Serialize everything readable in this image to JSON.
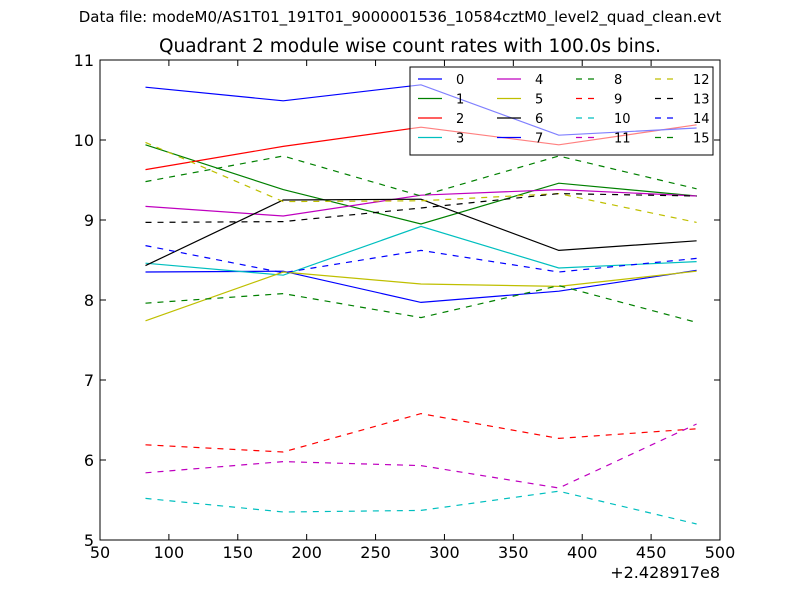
{
  "header": {
    "data_file": "Data file: modeM0/AS1T01_191T01_9000001536_10584cztM0_level2_quad_clean.evt",
    "title": "Quadrant 2 module wise count rates with 100.0s bins."
  },
  "chart_data": {
    "type": "line",
    "title": "Quadrant 2 module wise count rates with 100.0s bins.",
    "xlabel": "",
    "ylabel": "",
    "x_offset_label": "+2.428917e8",
    "xlim": [
      50,
      500
    ],
    "ylim": [
      5,
      11
    ],
    "xticks": [
      "50",
      "100",
      "150",
      "200",
      "250",
      "300",
      "350",
      "400",
      "450",
      "500"
    ],
    "yticks": [
      "5",
      "6",
      "7",
      "8",
      "9",
      "10",
      "11"
    ],
    "grid": false,
    "legend_position": "top-right",
    "legend_columns": 4,
    "x": [
      83,
      183,
      283,
      383,
      483
    ],
    "series": [
      {
        "name": "0",
        "color": "#0000ff",
        "dash": "solid",
        "values": [
          8.35,
          8.36,
          7.97,
          8.11,
          8.37
        ]
      },
      {
        "name": "1",
        "color": "#008000",
        "dash": "solid",
        "values": [
          9.94,
          9.38,
          8.95,
          9.46,
          9.3
        ]
      },
      {
        "name": "2",
        "color": "#ff0000",
        "dash": "solid",
        "values": [
          9.63,
          9.92,
          10.16,
          9.94,
          10.19
        ]
      },
      {
        "name": "3",
        "color": "#00bfbf",
        "dash": "solid",
        "values": [
          8.46,
          8.31,
          8.92,
          8.4,
          8.48
        ]
      },
      {
        "name": "4",
        "color": "#bf00bf",
        "dash": "solid",
        "values": [
          9.17,
          9.05,
          9.31,
          9.38,
          9.3
        ]
      },
      {
        "name": "5",
        "color": "#bfbf00",
        "dash": "solid",
        "values": [
          7.74,
          8.35,
          8.2,
          8.17,
          8.36
        ]
      },
      {
        "name": "6",
        "color": "#000000",
        "dash": "solid",
        "values": [
          8.43,
          9.25,
          9.26,
          8.62,
          8.74
        ]
      },
      {
        "name": "7",
        "color": "#0000ff",
        "dash": "solid",
        "values": [
          10.66,
          10.49,
          10.69,
          10.06,
          10.15
        ]
      },
      {
        "name": "8",
        "color": "#008000",
        "dash": "dashed",
        "values": [
          9.48,
          9.8,
          9.3,
          9.8,
          9.39
        ]
      },
      {
        "name": "9",
        "color": "#ff0000",
        "dash": "dashed",
        "values": [
          6.19,
          6.1,
          6.58,
          6.27,
          6.39
        ]
      },
      {
        "name": "10",
        "color": "#00bfbf",
        "dash": "dashed",
        "values": [
          5.52,
          5.35,
          5.37,
          5.61,
          5.2
        ]
      },
      {
        "name": "11",
        "color": "#bf00bf",
        "dash": "dashed",
        "values": [
          5.84,
          5.98,
          5.93,
          5.65,
          6.45
        ]
      },
      {
        "name": "12",
        "color": "#bfbf00",
        "dash": "dashed",
        "values": [
          9.97,
          9.23,
          9.24,
          9.33,
          8.97
        ]
      },
      {
        "name": "13",
        "color": "#000000",
        "dash": "dashed",
        "values": [
          8.97,
          8.98,
          9.15,
          9.33,
          9.3
        ]
      },
      {
        "name": "14",
        "color": "#0000ff",
        "dash": "dashed",
        "values": [
          8.68,
          8.34,
          8.62,
          8.35,
          8.52
        ]
      },
      {
        "name": "15",
        "color": "#008000",
        "dash": "dashed",
        "values": [
          7.96,
          8.08,
          7.78,
          8.18,
          7.72
        ]
      }
    ]
  }
}
